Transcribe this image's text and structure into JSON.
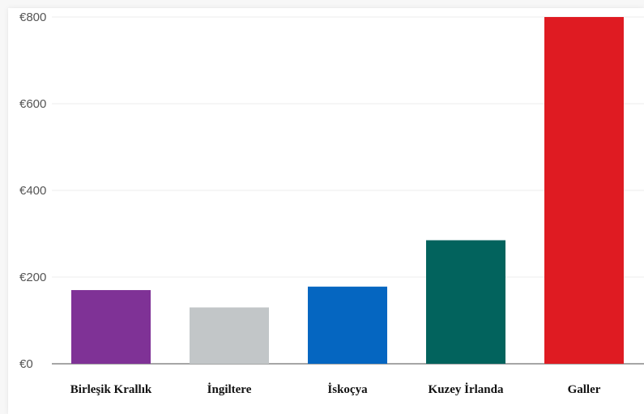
{
  "chart_data": {
    "type": "bar",
    "title": "",
    "xlabel": "",
    "ylabel": "",
    "categories": [
      "Birleşik Krallık",
      "İngiltere",
      "İskoçya",
      "Kuzey İrlanda",
      "Galler"
    ],
    "values": [
      170,
      130,
      178,
      285,
      800
    ],
    "colors": [
      "#7f3296",
      "#c2c6c8",
      "#0566c1",
      "#02635d",
      "#df1b22"
    ],
    "ylim": [
      0,
      800
    ],
    "yticks": [
      0,
      200,
      400,
      600,
      800
    ],
    "ytick_labels": [
      "€0",
      "€200",
      "€400",
      "€600",
      "€800"
    ],
    "grid": true,
    "legend": "none"
  }
}
